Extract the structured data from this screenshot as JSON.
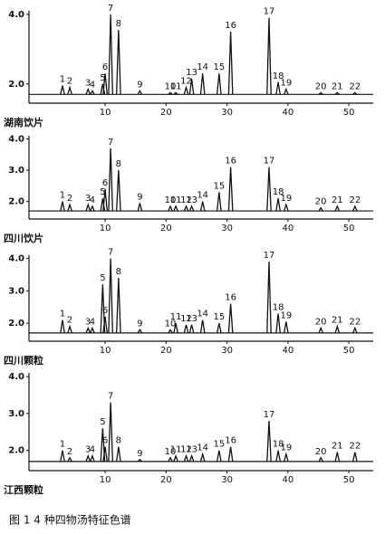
{
  "chart_data": [
    {
      "type": "line",
      "title": "湖南饮片",
      "color": "#111111",
      "x": [
        3.0,
        4.2,
        7.2,
        7.9,
        9.6,
        10.0,
        10.9,
        12.2,
        15.7,
        20.7,
        21.6,
        23.3,
        24.2,
        26.0,
        28.7,
        30.6,
        36.9,
        38.4,
        39.7,
        45.4,
        48.1,
        51.0
      ],
      "values": [
        1.95,
        1.9,
        1.85,
        1.8,
        2.0,
        2.3,
        4.0,
        3.55,
        1.8,
        1.75,
        1.75,
        1.9,
        2.15,
        2.3,
        2.3,
        3.5,
        3.9,
        2.05,
        1.85,
        1.75,
        1.75,
        1.75
      ],
      "peak_labels": [
        "1",
        "2",
        "3",
        "4",
        "5",
        "6",
        "7",
        "8",
        "9",
        "10",
        "11",
        "12",
        "13",
        "14",
        "15",
        "16",
        "17",
        "18",
        "19",
        "20",
        "21",
        "22"
      ],
      "baseline": 1.7,
      "xlim": [
        -2.5,
        54
      ],
      "xticks": [
        10,
        20,
        30,
        40,
        50
      ],
      "ylim": [
        1.5,
        4.1
      ],
      "yticks": [
        {
          "value": 4,
          "label": "4.0"
        },
        {
          "value": 2,
          "label": "2.0"
        }
      ]
    },
    {
      "type": "line",
      "title": "四川饮片",
      "color": "#111111",
      "x": [
        3.0,
        4.2,
        7.2,
        7.9,
        9.6,
        10.0,
        10.9,
        12.2,
        15.7,
        20.7,
        21.6,
        23.3,
        24.2,
        26.0,
        28.7,
        30.6,
        36.9,
        38.4,
        39.7,
        45.4,
        48.1,
        51.0
      ],
      "values": [
        2.0,
        1.9,
        1.9,
        1.85,
        2.1,
        2.4,
        3.7,
        3.0,
        1.95,
        1.85,
        1.85,
        1.85,
        1.85,
        2.0,
        2.3,
        3.1,
        3.1,
        2.1,
        1.9,
        1.8,
        1.85,
        1.85
      ],
      "peak_labels": [
        "1",
        "2",
        "3",
        "4",
        "5",
        "6",
        "7",
        "8",
        "9",
        "10",
        "11",
        "12",
        "13",
        "14",
        "15",
        "16",
        "17",
        "18",
        "19",
        "20",
        "21",
        "22"
      ],
      "baseline": 1.7,
      "xlim": [
        -2.5,
        54
      ],
      "xticks": [
        10,
        20,
        30,
        40,
        50
      ],
      "ylim": [
        1.5,
        4.1
      ],
      "yticks": [
        {
          "value": 4,
          "label": "4.0"
        },
        {
          "value": 3,
          "label": "3.0"
        },
        {
          "value": 2,
          "label": "2.0"
        }
      ]
    },
    {
      "type": "line",
      "title": "四川颗粒",
      "color": "#111111",
      "x": [
        3.0,
        4.2,
        7.2,
        7.9,
        9.6,
        10.0,
        10.9,
        12.2,
        15.7,
        20.7,
        21.6,
        23.3,
        24.2,
        26.0,
        28.7,
        30.6,
        36.9,
        38.4,
        39.7,
        45.4,
        48.1,
        51.0
      ],
      "values": [
        2.1,
        1.9,
        1.85,
        1.85,
        3.2,
        2.2,
        4.0,
        3.4,
        1.8,
        1.8,
        2.0,
        1.95,
        1.95,
        2.1,
        2.0,
        2.6,
        3.9,
        2.3,
        2.05,
        1.85,
        1.9,
        1.85
      ],
      "peak_labels": [
        "1",
        "2",
        "3",
        "4",
        "5",
        "6",
        "7",
        "8",
        "9",
        "10",
        "11",
        "12",
        "13",
        "14",
        "15",
        "16",
        "17",
        "18",
        "19",
        "20",
        "21",
        "22"
      ],
      "baseline": 1.7,
      "xlim": [
        -2.5,
        54
      ],
      "xticks": [
        10,
        20,
        30,
        40,
        50
      ],
      "ylim": [
        1.5,
        4.1
      ],
      "yticks": [
        {
          "value": 4,
          "label": "4.0"
        },
        {
          "value": 3,
          "label": "3.0"
        },
        {
          "value": 2,
          "label": "2.0"
        }
      ]
    },
    {
      "type": "line",
      "title": "江西颗粒",
      "color": "#111111",
      "x": [
        3.0,
        4.2,
        7.2,
        7.9,
        9.6,
        10.0,
        10.9,
        12.2,
        15.7,
        20.7,
        21.6,
        23.3,
        24.2,
        26.0,
        28.7,
        30.6,
        36.9,
        38.4,
        39.7,
        45.4,
        48.1,
        51.0
      ],
      "values": [
        2.0,
        1.8,
        1.85,
        1.85,
        2.6,
        2.1,
        3.3,
        2.1,
        1.75,
        1.8,
        1.85,
        1.85,
        1.85,
        1.9,
        2.0,
        2.1,
        2.8,
        2.0,
        1.9,
        1.8,
        1.95,
        1.95
      ],
      "peak_labels": [
        "1",
        "2",
        "3",
        "4",
        "5",
        "6",
        "7",
        "8",
        "9",
        "10",
        "11",
        "12",
        "13",
        "14",
        "15",
        "16",
        "17",
        "18",
        "19",
        "20",
        "21",
        "22"
      ],
      "baseline": 1.7,
      "xlim": [
        -2.5,
        54
      ],
      "xticks": [
        10,
        20,
        30,
        40,
        50
      ],
      "ylim": [
        1.5,
        4.1
      ],
      "yticks": [
        {
          "value": 4,
          "label": "4.0"
        },
        {
          "value": 3,
          "label": "3.0"
        },
        {
          "value": 2,
          "label": "2.0"
        }
      ]
    }
  ],
  "caption": "图 1   4 种四物汤特征色谱"
}
